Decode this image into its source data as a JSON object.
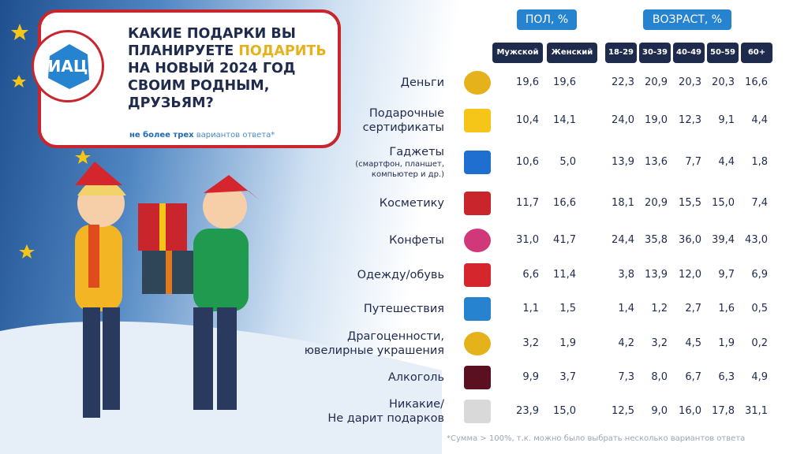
{
  "logo": "ИАЦ",
  "title_before": "КАКИЕ ПОДАРКИ ВЫ ПЛАНИРУЕТЕ ",
  "title_highlight": "ПОДАРИТЬ",
  "title_after": " НА НОВЫЙ 2024 ГОД СВОИМ РОДНЫМ, ДРУЗЬЯМ?",
  "subtitle_bold": "не более трех",
  "subtitle_rest": " вариантов ответа*",
  "groups": [
    "ПОЛ, %",
    "ВОЗРАСТ, %"
  ],
  "columns": [
    "Мужской",
    "Женский",
    "18-29",
    "30-39",
    "40-49",
    "50-59",
    "60+"
  ],
  "rows": [
    {
      "label": [
        "Деньги"
      ],
      "values": [
        "19,6",
        "19,6",
        "22,3",
        "20,9",
        "20,3",
        "20,3",
        "16,6"
      ]
    },
    {
      "label": [
        "Подарочные",
        "сертификаты"
      ],
      "values": [
        "10,4",
        "14,1",
        "24,0",
        "19,0",
        "12,3",
        "9,1",
        "4,4"
      ]
    },
    {
      "label": [
        "Гаджеты"
      ],
      "note": [
        "(смартфон, планшет,",
        "компьютер и др.)"
      ],
      "values": [
        "10,6",
        "5,0",
        "13,9",
        "13,6",
        "7,7",
        "4,4",
        "1,8"
      ]
    },
    {
      "label": [
        "Косметику"
      ],
      "values": [
        "11,7",
        "16,6",
        "18,1",
        "20,9",
        "15,5",
        "15,0",
        "7,4"
      ]
    },
    {
      "label": [
        "Конфеты"
      ],
      "values": [
        "31,0",
        "41,7",
        "24,4",
        "35,8",
        "36,0",
        "39,4",
        "43,0"
      ]
    },
    {
      "label": [
        "Одежду/обувь"
      ],
      "values": [
        "6,6",
        "11,4",
        "3,8",
        "13,9",
        "12,0",
        "9,7",
        "6,9"
      ]
    },
    {
      "label": [
        "Путешествия"
      ],
      "values": [
        "1,1",
        "1,5",
        "1,4",
        "1,2",
        "2,7",
        "1,6",
        "0,5"
      ]
    },
    {
      "label": [
        "Драгоценности,",
        "ювелирные украшения"
      ],
      "values": [
        "3,2",
        "1,9",
        "4,2",
        "3,2",
        "4,5",
        "1,9",
        "0,2"
      ]
    },
    {
      "label": [
        "Алкоголь"
      ],
      "values": [
        "9,9",
        "3,7",
        "7,3",
        "8,0",
        "6,7",
        "6,3",
        "4,9"
      ]
    },
    {
      "label": [
        "Никакие/",
        "Не дарит подарков"
      ],
      "values": [
        "23,9",
        "15,0",
        "12,5",
        "9,0",
        "16,0",
        "17,8",
        "31,1"
      ]
    }
  ],
  "footnote": "*Сумма  > 100%, т.к. можно было выбрать несколько вариантов ответа"
}
